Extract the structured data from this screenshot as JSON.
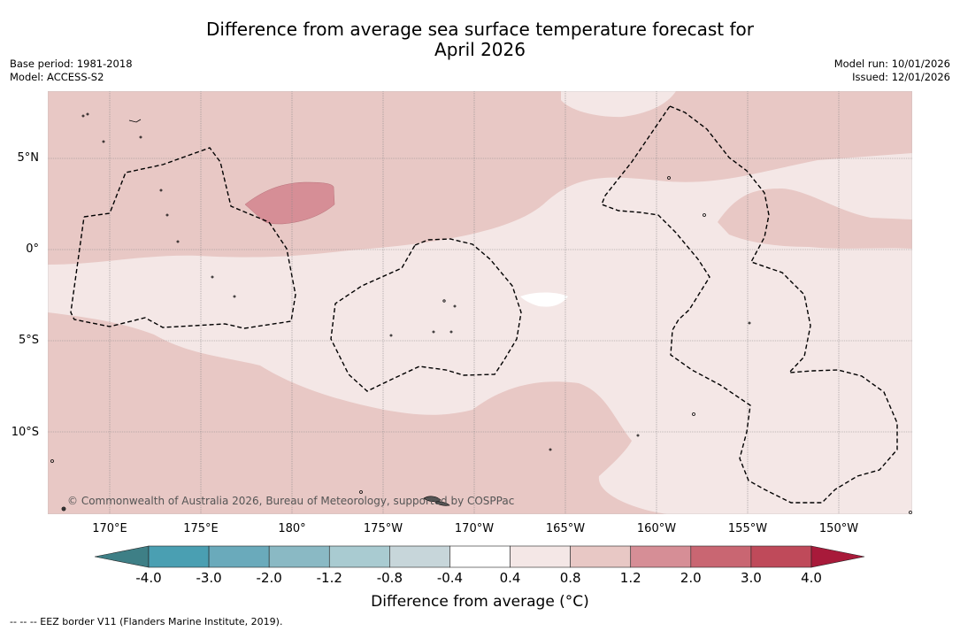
{
  "title_line1": "Difference from average sea surface temperature forecast for",
  "title_line2": "April 2026",
  "meta": {
    "base_period": "Base period: 1981-2018",
    "model": "Model: ACCESS-S2",
    "model_run": "Model run: 10/01/2026",
    "issued": "Issued: 12/01/2026"
  },
  "map": {
    "lat_labels": [
      "5°N",
      "0°",
      "5°S",
      "10°S"
    ],
    "lon_labels": [
      "170°E",
      "175°E",
      "180°",
      "175°W",
      "170°W",
      "165°W",
      "160°W",
      "155°W",
      "150°W"
    ],
    "credit": "© Commonwealth of Australia 2026, Bureau of Meteorology, supported by COSPPac"
  },
  "colorbar": {
    "ticks": [
      "-4.0",
      "-3.0",
      "-2.0",
      "-1.2",
      "-0.8",
      "-0.4",
      "0.4",
      "0.8",
      "1.2",
      "2.0",
      "3.0",
      "4.0"
    ],
    "colors": [
      "#4a9fb2",
      "#6aaabb",
      "#8ab9c4",
      "#a9cbd1",
      "#c7d6da",
      "#ffffff",
      "#f4e7e6",
      "#e8c8c5",
      "#d68e96",
      "#c96672",
      "#bf4a5a"
    ],
    "under_color": "#3e7f86",
    "over_color": "#a81a3a",
    "label": "Difference from average (°C)"
  },
  "legend_eez": "-- -- -- EEZ border V11 (Flanders Marine Institute, 2019)."
}
